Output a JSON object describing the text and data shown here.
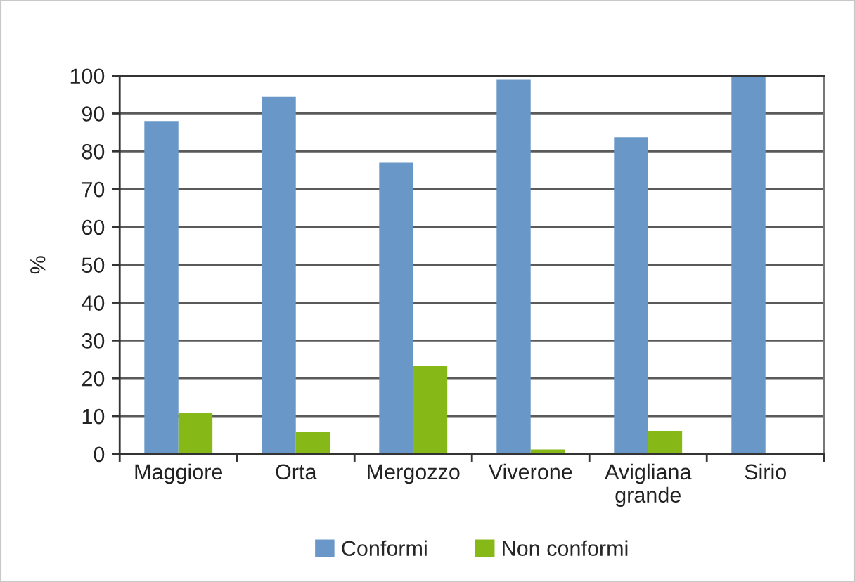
{
  "chart_data": {
    "type": "bar",
    "ylabel": "%",
    "categories": [
      "Maggiore",
      "Orta",
      "Mergozzo",
      "Viverone",
      "Avigliana\ngrande",
      "Sirio"
    ],
    "series": [
      {
        "name": "Conformi",
        "color": "#6998c8",
        "values": [
          88,
          94.4,
          77,
          98.9,
          83.7,
          100
        ]
      },
      {
        "name": "Non conformi",
        "color": "#86b817",
        "values": [
          10.9,
          5.8,
          23.2,
          1.2,
          6.1,
          0
        ]
      }
    ],
    "ylim": [
      0,
      100
    ],
    "yticks": [
      0,
      10,
      20,
      30,
      40,
      50,
      60,
      70,
      80,
      90,
      100
    ],
    "grid": "y",
    "legend": "bottom"
  }
}
